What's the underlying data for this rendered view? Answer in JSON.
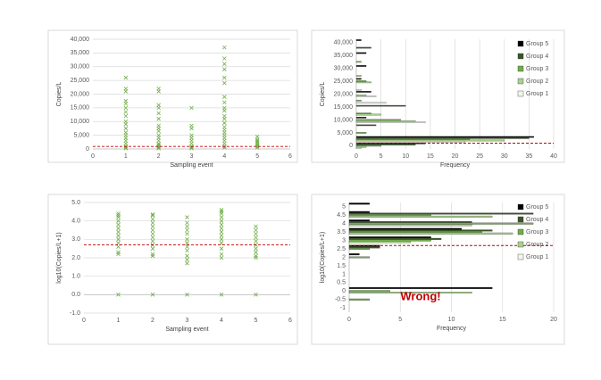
{
  "chart_data": [
    {
      "type": "scatter",
      "x_label": "Sampling event",
      "y_label": "Copies/L",
      "color": "#70ad47",
      "x": [
        1,
        1,
        1,
        1,
        1,
        1,
        1,
        1,
        1,
        1,
        1,
        1,
        1,
        1,
        1,
        1,
        1,
        1,
        1,
        2,
        2,
        2,
        2,
        2,
        2,
        2,
        2,
        2,
        2,
        2,
        2,
        2,
        2,
        2,
        2,
        2,
        3,
        3,
        3,
        3,
        3,
        3,
        3,
        3,
        3,
        3,
        4,
        4,
        4,
        4,
        4,
        4,
        4,
        4,
        4,
        4,
        4,
        4,
        4,
        4,
        4,
        4,
        4,
        4,
        4,
        4,
        4,
        4,
        5,
        5,
        5,
        5,
        5,
        5,
        5,
        5
      ],
      "y": [
        26000,
        22000,
        21000,
        17500,
        16500,
        15000,
        13500,
        12000,
        10000,
        9000,
        7500,
        6000,
        5000,
        4000,
        3000,
        2000,
        1000,
        500,
        200,
        22000,
        21000,
        16000,
        15000,
        13000,
        11000,
        8500,
        7500,
        6500,
        5000,
        4000,
        3000,
        2000,
        1500,
        1000,
        500,
        200,
        15000,
        8500,
        7500,
        5000,
        4000,
        3000,
        2000,
        1000,
        500,
        200,
        37000,
        33000,
        31000,
        29000,
        26000,
        24000,
        19000,
        17000,
        15000,
        14000,
        12000,
        11000,
        9500,
        8000,
        7000,
        6000,
        5000,
        4000,
        3000,
        2000,
        1000,
        500,
        4500,
        3500,
        3000,
        2500,
        2000,
        1500,
        1000,
        500
      ],
      "threshold": 900,
      "threshold_color": "#c00000",
      "xlim": [
        0,
        6
      ],
      "xticks": [
        0,
        1,
        2,
        3,
        4,
        5,
        6
      ],
      "ylim": [
        0,
        40000
      ],
      "yticks": [
        0,
        {
          "value": 5000,
          "label": "5,000"
        },
        {
          "value": 10000,
          "label": "10,000"
        },
        {
          "value": 15000,
          "label": "15,000"
        },
        {
          "value": 20000,
          "label": "20,000"
        },
        {
          "value": 25000,
          "label": "25,000"
        },
        {
          "value": 30000,
          "label": "30,000"
        },
        {
          "value": 35000,
          "label": "35,000"
        },
        {
          "value": 40000,
          "label": "40,000"
        }
      ],
      "grid": "y"
    },
    {
      "type": "hbar",
      "x_label": "Frequency",
      "y_label": "Copies/L",
      "legend": "right",
      "y": [
        40000,
        37500,
        35000,
        32500,
        30000,
        27500,
        25000,
        22500,
        20000,
        17500,
        15000,
        12500,
        10000,
        7500,
        5000,
        2500,
        0
      ],
      "bin_width": 2500,
      "series": [
        {
          "name": "Group 5",
          "color": "#000000",
          "values": [
            1,
            0,
            2,
            0,
            2,
            0,
            1,
            0,
            3,
            0,
            0,
            0,
            2,
            0,
            0,
            36,
            14
          ]
        },
        {
          "name": "Group 4",
          "color": "#375623",
          "values": [
            0,
            3,
            0,
            0,
            0,
            0,
            0,
            0,
            0,
            0,
            10,
            0,
            0,
            4,
            0,
            35,
            12
          ]
        },
        {
          "name": "Group 3",
          "color": "#70ad47",
          "values": [
            0,
            0,
            0,
            1,
            0,
            0,
            2,
            0,
            0,
            1,
            0,
            3,
            9,
            0,
            2,
            23,
            5
          ]
        },
        {
          "name": "Group 2",
          "color": "#a9d18e",
          "values": [
            0,
            0,
            0,
            0,
            0,
            1,
            3,
            0,
            2,
            0,
            0,
            5,
            12,
            0,
            0,
            30,
            2
          ]
        },
        {
          "name": "Group 1",
          "color": "#f2f8ee",
          "values": [
            0,
            0,
            0,
            0,
            0,
            0,
            0,
            1,
            4,
            6,
            0,
            0,
            14,
            0,
            0,
            22,
            1
          ]
        }
      ],
      "threshold": 1000,
      "threshold_color": "#c00000",
      "xlim": [
        0,
        40
      ],
      "xticks": [
        0,
        5,
        10,
        15,
        20,
        25,
        30,
        35,
        40
      ],
      "ylim": [
        -1250,
        41250
      ],
      "yticks": [
        0,
        {
          "value": 5000,
          "label": "5,000"
        },
        {
          "value": 10000,
          "label": "10,000"
        },
        {
          "value": 15000,
          "label": "15,000"
        },
        {
          "value": 20000,
          "label": "20,000"
        },
        {
          "value": 25000,
          "label": "25,000"
        },
        {
          "value": 30000,
          "label": "30,000"
        },
        {
          "value": 35000,
          "label": "35,000"
        },
        {
          "value": 40000,
          "label": "40,000"
        }
      ],
      "grid": "x"
    },
    {
      "type": "scatter",
      "x_label": "Sampling event",
      "y_label": "log10(Copies/L+1)",
      "color": "#70ad47",
      "x": [
        1,
        1,
        1,
        1,
        1,
        1,
        1,
        1,
        1,
        1,
        1,
        1,
        1,
        1,
        2,
        2,
        2,
        2,
        2,
        2,
        2,
        2,
        2,
        2,
        2,
        2,
        2,
        2,
        3,
        3,
        3,
        3,
        3,
        3,
        3,
        3,
        3,
        3,
        3,
        3,
        3,
        4,
        4,
        4,
        4,
        4,
        4,
        4,
        4,
        4,
        4,
        4,
        4,
        4,
        4,
        4,
        5,
        5,
        5,
        5,
        5,
        5,
        5,
        5,
        5,
        5,
        5
      ],
      "y": [
        4.4,
        4.3,
        4.2,
        4.0,
        3.8,
        3.6,
        3.4,
        3.2,
        3.0,
        2.8,
        2.6,
        2.3,
        2.2,
        0,
        4.35,
        4.3,
        4.1,
        3.9,
        3.7,
        3.5,
        3.3,
        3.1,
        2.9,
        2.7,
        2.5,
        2.2,
        2.1,
        0,
        4.2,
        3.9,
        3.7,
        3.5,
        3.3,
        3.0,
        2.8,
        2.6,
        2.4,
        2.1,
        1.9,
        1.7,
        0,
        4.6,
        4.5,
        4.4,
        4.2,
        4.0,
        3.8,
        3.6,
        3.4,
        3.2,
        3.0,
        2.8,
        2.5,
        2.2,
        2.0,
        0,
        3.7,
        3.5,
        3.3,
        3.1,
        2.9,
        2.7,
        2.5,
        2.3,
        2.1,
        2.0,
        0
      ],
      "threshold": 2.7,
      "threshold_color": "#c00000",
      "xlim": [
        0,
        6
      ],
      "xticks": [
        0,
        1,
        2,
        3,
        4,
        5,
        6
      ],
      "ylim": [
        -1,
        5
      ],
      "yticks": [
        {
          "value": -1,
          "label": "-1.0"
        },
        {
          "value": 0,
          "label": "0.0"
        },
        {
          "value": 1,
          "label": "1.0"
        },
        {
          "value": 2,
          "label": "2.0"
        },
        {
          "value": 3,
          "label": "3.0"
        },
        {
          "value": 4,
          "label": "4.0"
        },
        {
          "value": 5,
          "label": "5.0"
        }
      ],
      "grid": "y"
    },
    {
      "type": "hbar",
      "x_label": "Frequency",
      "y_label": "log10(Copies/L+1)",
      "legend": "right",
      "annotation": "Wrong!",
      "y": [
        5,
        4.5,
        4,
        3.5,
        3,
        2.5,
        2,
        1.5,
        1,
        0.5,
        0,
        -0.5,
        -1
      ],
      "bin_width": 0.5,
      "series": [
        {
          "name": "Group 5",
          "color": "#000000",
          "values": [
            2,
            2,
            2,
            11,
            8,
            3,
            1,
            0,
            0,
            0,
            14,
            0,
            0
          ]
        },
        {
          "name": "Group 4",
          "color": "#375623",
          "values": [
            0,
            18,
            12,
            14,
            9,
            3,
            0,
            0,
            0,
            0,
            0,
            0,
            0
          ]
        },
        {
          "name": "Group 3",
          "color": "#70ad47",
          "values": [
            0,
            8,
            18,
            13,
            8,
            2,
            2,
            0,
            0,
            0,
            4,
            2,
            0
          ]
        },
        {
          "name": "Group 2",
          "color": "#a9d18e",
          "values": [
            0,
            14,
            12,
            16,
            6,
            0,
            0,
            0,
            0,
            0,
            12,
            0,
            0
          ]
        },
        {
          "name": "Group 1",
          "color": "#f2f8ee",
          "values": [
            0,
            0,
            0,
            0,
            0,
            0,
            0,
            0,
            0,
            0,
            0,
            0,
            0
          ]
        }
      ],
      "threshold": 2.7,
      "threshold_color": "#c00000",
      "xlim": [
        0,
        20
      ],
      "xticks": [
        0,
        5,
        10,
        15,
        20
      ],
      "ylim": [
        -1.25,
        5.25
      ],
      "yticks": [
        5,
        4.5,
        4,
        3.5,
        3,
        2.5,
        2,
        1.5,
        1,
        0.5,
        0,
        -0.5,
        -1
      ],
      "grid": "x"
    }
  ]
}
